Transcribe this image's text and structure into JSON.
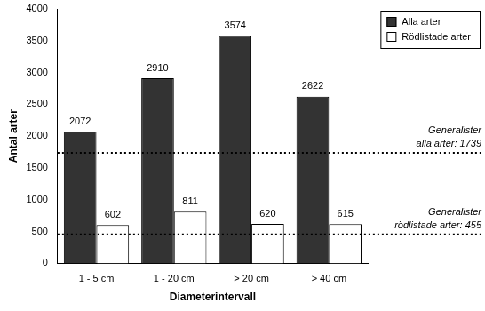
{
  "chart_data": {
    "type": "bar",
    "categories": [
      "1 - 5 cm",
      "1 - 20 cm",
      "> 20 cm",
      "> 40 cm"
    ],
    "series": [
      {
        "name": "Alla arter",
        "color": "#333333",
        "values": [
          2072,
          2910,
          3574,
          2622
        ]
      },
      {
        "name": "Rödlistade arter",
        "color": "#ffffff",
        "values": [
          602,
          811,
          620,
          615
        ]
      }
    ],
    "x_label": "Diameterintervall",
    "y_label": "Antal arter",
    "ylim": [
      0,
      4000
    ],
    "yticks": [
      0,
      500,
      1000,
      1500,
      2000,
      2500,
      3000,
      3500,
      4000
    ],
    "grid": false,
    "legend": "upper right",
    "data_labels": true,
    "annotations": [
      {
        "y": 1739,
        "text": [
          "Generalister",
          "alla arter: 1739"
        ],
        "line_style": "dotted"
      },
      {
        "y": 455,
        "text": [
          "Generalister",
          "rödlistade arter: 455"
        ],
        "line_style": "dotted"
      }
    ]
  }
}
